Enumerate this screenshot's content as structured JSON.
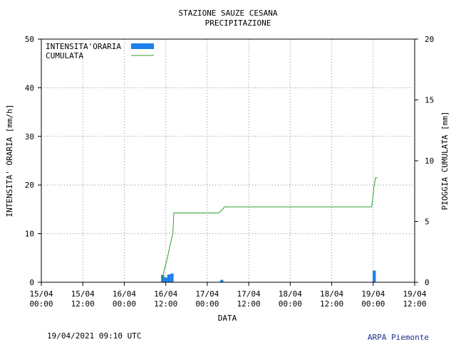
{
  "chart_data": {
    "type": "bar+line",
    "title": "STAZIONE SAUZE CESANA",
    "subtitle": "PRECIPITAZIONE",
    "xlabel": "DATA",
    "ylabel_left": "INTENSITA' ORARIA [mm/h]",
    "ylabel_right": "PIOGGIA CUMULATA [mm]",
    "ylim_left": [
      0,
      50
    ],
    "ylim_right": [
      0,
      20
    ],
    "yticks_left": [
      "0",
      "10",
      "20",
      "30",
      "40",
      "50"
    ],
    "yticks_right": [
      "0",
      "5",
      "10",
      "15",
      "20"
    ],
    "xticks": [
      {
        "date": "15/04",
        "time": "00:00"
      },
      {
        "date": "15/04",
        "time": "12:00"
      },
      {
        "date": "16/04",
        "time": "00:00"
      },
      {
        "date": "16/04",
        "time": "12:00"
      },
      {
        "date": "17/04",
        "time": "00:00"
      },
      {
        "date": "17/04",
        "time": "12:00"
      },
      {
        "date": "18/04",
        "time": "00:00"
      },
      {
        "date": "18/04",
        "time": "12:00"
      },
      {
        "date": "19/04",
        "time": "00:00"
      },
      {
        "date": "19/04",
        "time": "12:00"
      }
    ],
    "grid": true,
    "legend_position": "top-left",
    "series": [
      {
        "name": "INTENSITA'ORARIA",
        "kind": "bar",
        "axis": "left",
        "color": "#1e7ff0",
        "points": [
          {
            "hour": 39,
            "value": 1.5
          },
          {
            "hour": 40,
            "value": 1.0
          },
          {
            "hour": 41,
            "value": 1.6
          },
          {
            "hour": 42,
            "value": 1.8
          },
          {
            "hour": 58,
            "value": 0.5
          },
          {
            "hour": 107,
            "value": 2.4
          }
        ]
      },
      {
        "name": "CUMULATA",
        "kind": "line",
        "axis": "right",
        "color": "#2ca02c",
        "points": [
          {
            "hour": 0,
            "value": 0
          },
          {
            "hour": 38.6,
            "value": 0
          },
          {
            "hour": 39.5,
            "value": 1.0
          },
          {
            "hour": 40.5,
            "value": 2.0
          },
          {
            "hour": 41.5,
            "value": 3.2
          },
          {
            "hour": 42.3,
            "value": 4.0
          },
          {
            "hour": 42.6,
            "value": 5.7
          },
          {
            "hour": 57.0,
            "value": 5.7
          },
          {
            "hour": 58.3,
            "value": 6.0
          },
          {
            "hour": 58.8,
            "value": 6.2
          },
          {
            "hour": 106.2,
            "value": 6.2
          },
          {
            "hour": 106.9,
            "value": 7.8
          },
          {
            "hour": 107.4,
            "value": 8.6
          },
          {
            "hour": 108.0,
            "value": 8.6
          }
        ]
      }
    ]
  },
  "footer": {
    "timestamp": "19/04/2021 09:10 UTC",
    "brand": "ARPA Piemonte"
  }
}
